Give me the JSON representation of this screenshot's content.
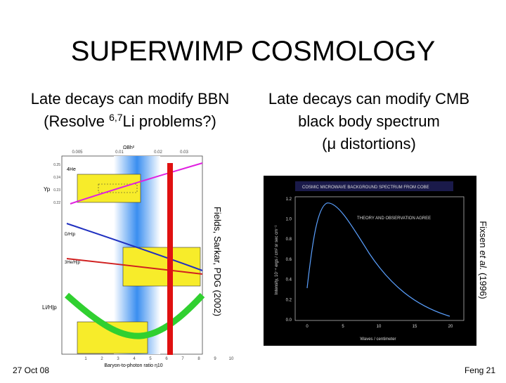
{
  "title": "SUPERWIMP COSMOLOGY",
  "left": {
    "line1": "Late decays can modify BBN",
    "line2": {
      "pre": "(Resolve ",
      "sup": "6,7",
      "post": "Li problems?)"
    }
  },
  "right": {
    "line1": "Late decays can modify CMB",
    "line2": "black body spectrum",
    "line3": "(μ distortions)"
  },
  "bbn_figure": {
    "top_ticks": [
      "0.005",
      "0.01",
      "0.02",
      "0.03"
    ],
    "top_label": "ΩBh²",
    "he_label": "4He",
    "yp_label": "Yp",
    "y_ticks": [
      "0.25",
      "0.24",
      "0.23",
      "0.22"
    ],
    "d_label": "D/H|p",
    "he3_label": "3He/H|p",
    "li_label": "Li/H|p",
    "x_ticks": [
      "1",
      "2",
      "3",
      "4",
      "5",
      "6",
      "7",
      "8",
      "9",
      "10"
    ],
    "x_label": "Baryon-to-photon ratio η10",
    "credit": "Fields, Sarkar, PDG (2002)"
  },
  "cmb_figure": {
    "title": "COSMIC MICROWAVE BACKGROUND SPECTRUM FROM COBE",
    "note": "THEORY AND OBSERVATION AGREE",
    "y_ticks": [
      "0.0",
      "0.2",
      "0.4",
      "0.6",
      "0.8",
      "1.0",
      "1.2"
    ],
    "x_ticks": [
      "0",
      "5",
      "10",
      "15",
      "20"
    ],
    "x_label": "Waves / centimeter",
    "y_label": "Intensity, 10⁻⁴ ergs / cm² sr sec cm⁻¹",
    "credit": {
      "pre": "Fixsen ",
      "it": "et al.",
      "post": " (1996)"
    }
  },
  "footer": {
    "date": "27 Oct 08",
    "page": "Feng  21"
  }
}
